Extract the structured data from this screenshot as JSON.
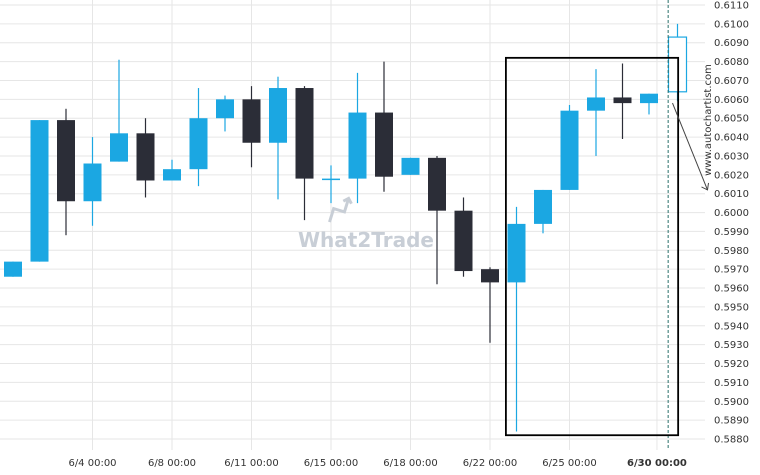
{
  "chart_data": {
    "type": "candlestick",
    "ylim": [
      0.5875,
      0.611
    ],
    "y_ticks": [
      "0.6110",
      "0.6100",
      "0.6090",
      "0.6080",
      "0.6070",
      "0.6060",
      "0.6050",
      "0.6040",
      "0.6030",
      "0.6020",
      "0.6010",
      "0.6000",
      "0.5990",
      "0.5980",
      "0.5970",
      "0.5960",
      "0.5950",
      "0.5940",
      "0.5930",
      "0.5920",
      "0.5910",
      "0.5900",
      "0.5890",
      "0.5880"
    ],
    "x_ticks": [
      {
        "label": "6/4 00:00",
        "index": 3,
        "bold": false
      },
      {
        "label": "6/8 00:00",
        "index": 6,
        "bold": false
      },
      {
        "label": "6/11 00:00",
        "index": 9,
        "bold": false
      },
      {
        "label": "6/15 00:00",
        "index": 12,
        "bold": false
      },
      {
        "label": "6/18 00:00",
        "index": 15,
        "bold": false
      },
      {
        "label": "6/22 00:00",
        "index": 18,
        "bold": false
      },
      {
        "label": "6/25 00:00",
        "index": 21,
        "bold": false
      },
      {
        "label": "6/30 00:00",
        "index": 24.3,
        "bold": true
      }
    ],
    "candles": [
      {
        "o": 0.5966,
        "c": 0.5974,
        "h": 0.5974,
        "l": 0.5966
      },
      {
        "o": 0.5974,
        "c": 0.6049,
        "h": 0.6049,
        "l": 0.5974
      },
      {
        "o": 0.6049,
        "c": 0.6006,
        "h": 0.6055,
        "l": 0.5988
      },
      {
        "o": 0.6006,
        "c": 0.6026,
        "h": 0.604,
        "l": 0.5993
      },
      {
        "o": 0.6027,
        "c": 0.6042,
        "h": 0.6081,
        "l": 0.6027
      },
      {
        "o": 0.6042,
        "c": 0.6017,
        "h": 0.605,
        "l": 0.6008
      },
      {
        "o": 0.6017,
        "c": 0.6023,
        "h": 0.6028,
        "l": 0.6017
      },
      {
        "o": 0.6023,
        "c": 0.605,
        "h": 0.6066,
        "l": 0.6014
      },
      {
        "o": 0.605,
        "c": 0.606,
        "h": 0.6062,
        "l": 0.6043
      },
      {
        "o": 0.606,
        "c": 0.6037,
        "h": 0.6067,
        "l": 0.6024
      },
      {
        "o": 0.6037,
        "c": 0.6066,
        "h": 0.6072,
        "l": 0.6007
      },
      {
        "o": 0.6066,
        "c": 0.6018,
        "h": 0.6067,
        "l": 0.5996
      },
      {
        "o": 0.6018,
        "c": 0.6018,
        "h": 0.6025,
        "l": 0.6005
      },
      {
        "o": 0.6018,
        "c": 0.6053,
        "h": 0.6074,
        "l": 0.6005
      },
      {
        "o": 0.6053,
        "c": 0.6019,
        "h": 0.608,
        "l": 0.6011
      },
      {
        "o": 0.602,
        "c": 0.6029,
        "h": 0.6029,
        "l": 0.602
      },
      {
        "o": 0.6029,
        "c": 0.6001,
        "h": 0.603,
        "l": 0.5962
      },
      {
        "o": 0.6001,
        "c": 0.5969,
        "h": 0.6008,
        "l": 0.5966
      },
      {
        "o": 0.597,
        "c": 0.5963,
        "h": 0.5971,
        "l": 0.5931
      },
      {
        "o": 0.5963,
        "c": 0.5994,
        "h": 0.6003,
        "l": 0.5884
      },
      {
        "o": 0.5994,
        "c": 0.6012,
        "h": 0.6012,
        "l": 0.5989
      },
      {
        "o": 0.6012,
        "c": 0.6054,
        "h": 0.6057,
        "l": 0.6012
      },
      {
        "o": 0.6054,
        "c": 0.6061,
        "h": 0.6076,
        "l": 0.603
      },
      {
        "o": 0.6061,
        "c": 0.6058,
        "h": 0.6079,
        "l": 0.6039
      },
      {
        "o": 0.6058,
        "c": 0.6063,
        "h": 0.6063,
        "l": 0.6052
      }
    ],
    "projection": {
      "o": 0.6064,
      "c": 0.6093,
      "h": 0.61,
      "l": 0.6059
    },
    "highlight_box": {
      "from_index": 18.6,
      "to_index": 25.1,
      "y_top": 0.6082,
      "y_bottom": 0.5882
    },
    "forecast_arrow": {
      "from_y": 0.6058,
      "to_y": 0.6012
    },
    "grid": true,
    "colors": {
      "up": "#1ba7e2",
      "down": "#2b2d37",
      "box": "#000000",
      "grid": "#e6e6e6",
      "forecast_arrow": "#444444",
      "current_line": "#2a6f6a"
    },
    "side_label": "www.autochartist.com",
    "watermark": "What2Trade"
  }
}
